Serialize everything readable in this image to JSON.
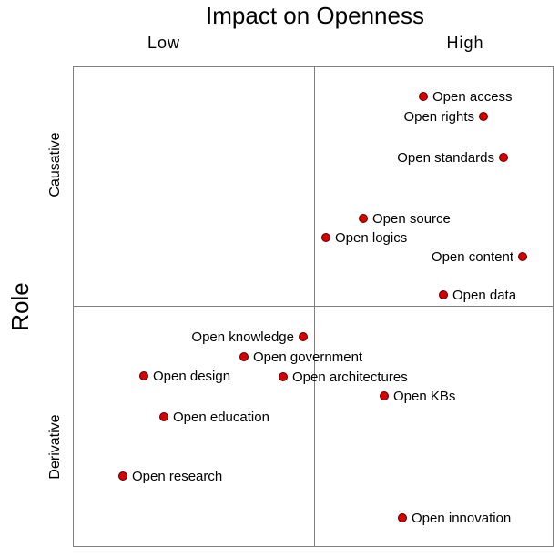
{
  "title": "Impact on Openness",
  "columns": {
    "low": "Low",
    "high": "High"
  },
  "role_label": "Role",
  "rows": {
    "top": "Causative",
    "bottom": "Derivative"
  },
  "colors": {
    "dot_fill": "#d60000",
    "dot_stroke": "#5a0000",
    "grid": "#7f7f7f"
  },
  "items": [
    {
      "label": "Open access",
      "label_side": "right"
    },
    {
      "label": "Open rights",
      "label_side": "left"
    },
    {
      "label": "Open standards",
      "label_side": "left"
    },
    {
      "label": "Open source",
      "label_side": "right"
    },
    {
      "label": "Open logics",
      "label_side": "right"
    },
    {
      "label": "Open content",
      "label_side": "left"
    },
    {
      "label": "Open data",
      "label_side": "right"
    },
    {
      "label": "Open knowledge",
      "label_side": "left"
    },
    {
      "label": "Open government",
      "label_side": "right"
    },
    {
      "label": "Open design",
      "label_side": "right"
    },
    {
      "label": "Open architectures",
      "label_side": "right"
    },
    {
      "label": "Open KBs",
      "label_side": "right"
    },
    {
      "label": "Open education",
      "label_side": "right"
    },
    {
      "label": "Open research",
      "label_side": "right"
    },
    {
      "label": "Open innovation",
      "label_side": "right"
    }
  ]
}
